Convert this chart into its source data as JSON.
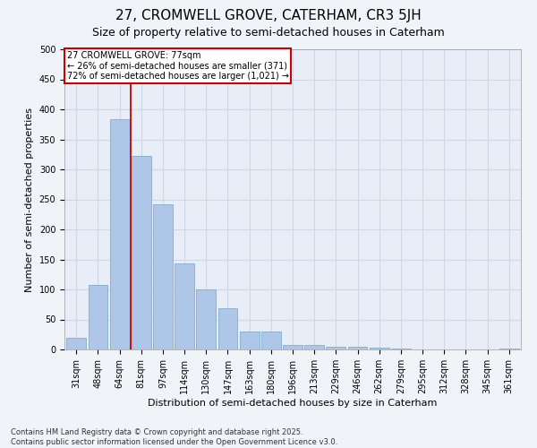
{
  "title_line1": "27, CROMWELL GROVE, CATERHAM, CR3 5JH",
  "title_line2": "Size of property relative to semi-detached houses in Caterham",
  "xlabel": "Distribution of semi-detached houses by size in Caterham",
  "ylabel": "Number of semi-detached properties",
  "categories": [
    "31sqm",
    "48sqm",
    "64sqm",
    "81sqm",
    "97sqm",
    "114sqm",
    "130sqm",
    "147sqm",
    "163sqm",
    "180sqm",
    "196sqm",
    "213sqm",
    "229sqm",
    "246sqm",
    "262sqm",
    "279sqm",
    "295sqm",
    "312sqm",
    "328sqm",
    "345sqm",
    "361sqm"
  ],
  "values": [
    20,
    107,
    383,
    323,
    242,
    143,
    100,
    68,
    30,
    30,
    8,
    8,
    5,
    5,
    3,
    1,
    0,
    0,
    0,
    0,
    1
  ],
  "bar_color": "#aec6e8",
  "bar_edgecolor": "#7faed0",
  "grid_color": "#d0d8e8",
  "background_color": "#e8eef8",
  "fig_background_color": "#f0f4f8",
  "property_line_idx": 2.5,
  "property_label": "27 CROMWELL GROVE: 77sqm",
  "annotation_line1": "← 26% of semi-detached houses are smaller (371)",
  "annotation_line2": "72% of semi-detached houses are larger (1,021) →",
  "annotation_box_color": "#ffffff",
  "annotation_box_edgecolor": "#cc0000",
  "property_line_color": "#cc0000",
  "footer_line1": "Contains HM Land Registry data © Crown copyright and database right 2025.",
  "footer_line2": "Contains public sector information licensed under the Open Government Licence v3.0.",
  "ylim": [
    0,
    500
  ],
  "yticks": [
    0,
    50,
    100,
    150,
    200,
    250,
    300,
    350,
    400,
    450,
    500
  ],
  "title_fontsize": 11,
  "subtitle_fontsize": 9,
  "axis_label_fontsize": 8,
  "tick_fontsize": 7,
  "annotation_fontsize": 7,
  "footer_fontsize": 6
}
